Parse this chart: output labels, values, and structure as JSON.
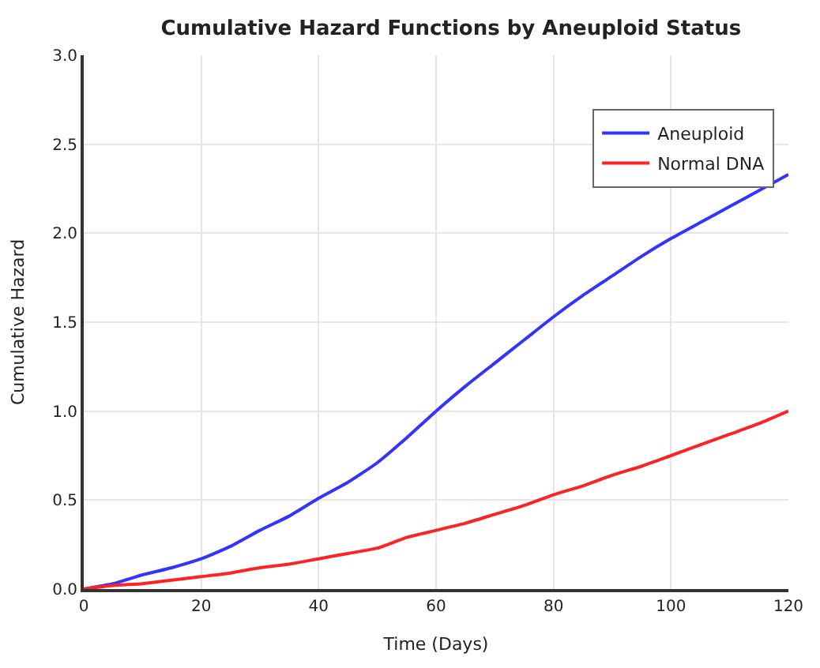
{
  "chart_data": {
    "type": "line",
    "title": "Cumulative Hazard Functions by Aneuploid Status",
    "xlabel": "Time (Days)",
    "ylabel": "Cumulative Hazard",
    "x": [
      0,
      5,
      10,
      15,
      20,
      25,
      30,
      35,
      40,
      45,
      50,
      55,
      60,
      65,
      70,
      75,
      80,
      85,
      90,
      95,
      100,
      105,
      110,
      115,
      120
    ],
    "series": [
      {
        "name": "Aneuploid",
        "color": "#3333ff",
        "values": [
          0,
          0.03,
          0.08,
          0.12,
          0.17,
          0.24,
          0.33,
          0.41,
          0.51,
          0.6,
          0.71,
          0.85,
          1.0,
          1.14,
          1.27,
          1.4,
          1.53,
          1.65,
          1.76,
          1.87,
          1.97,
          2.06,
          2.15,
          2.24,
          2.33
        ]
      },
      {
        "name": "Normal DNA",
        "color": "#ff2222",
        "values": [
          0,
          0.02,
          0.03,
          0.05,
          0.07,
          0.09,
          0.12,
          0.14,
          0.17,
          0.2,
          0.23,
          0.29,
          0.33,
          0.37,
          0.42,
          0.47,
          0.53,
          0.58,
          0.64,
          0.69,
          0.75,
          0.81,
          0.87,
          0.93,
          1.0
        ]
      }
    ],
    "xlim": [
      0,
      120
    ],
    "xticks": [
      0,
      20,
      40,
      60,
      80,
      100,
      120
    ],
    "ylim": [
      0,
      3
    ],
    "yticks": [
      {
        "value": 0,
        "label": "0.0"
      },
      0.5,
      {
        "value": 1,
        "label": "1.0"
      },
      1.5,
      {
        "value": 2,
        "label": "2.0"
      },
      2.5,
      {
        "value": 3,
        "label": "3.0"
      }
    ],
    "grid": true,
    "legend": "top right",
    "line_style": "solid",
    "marker": "none"
  }
}
